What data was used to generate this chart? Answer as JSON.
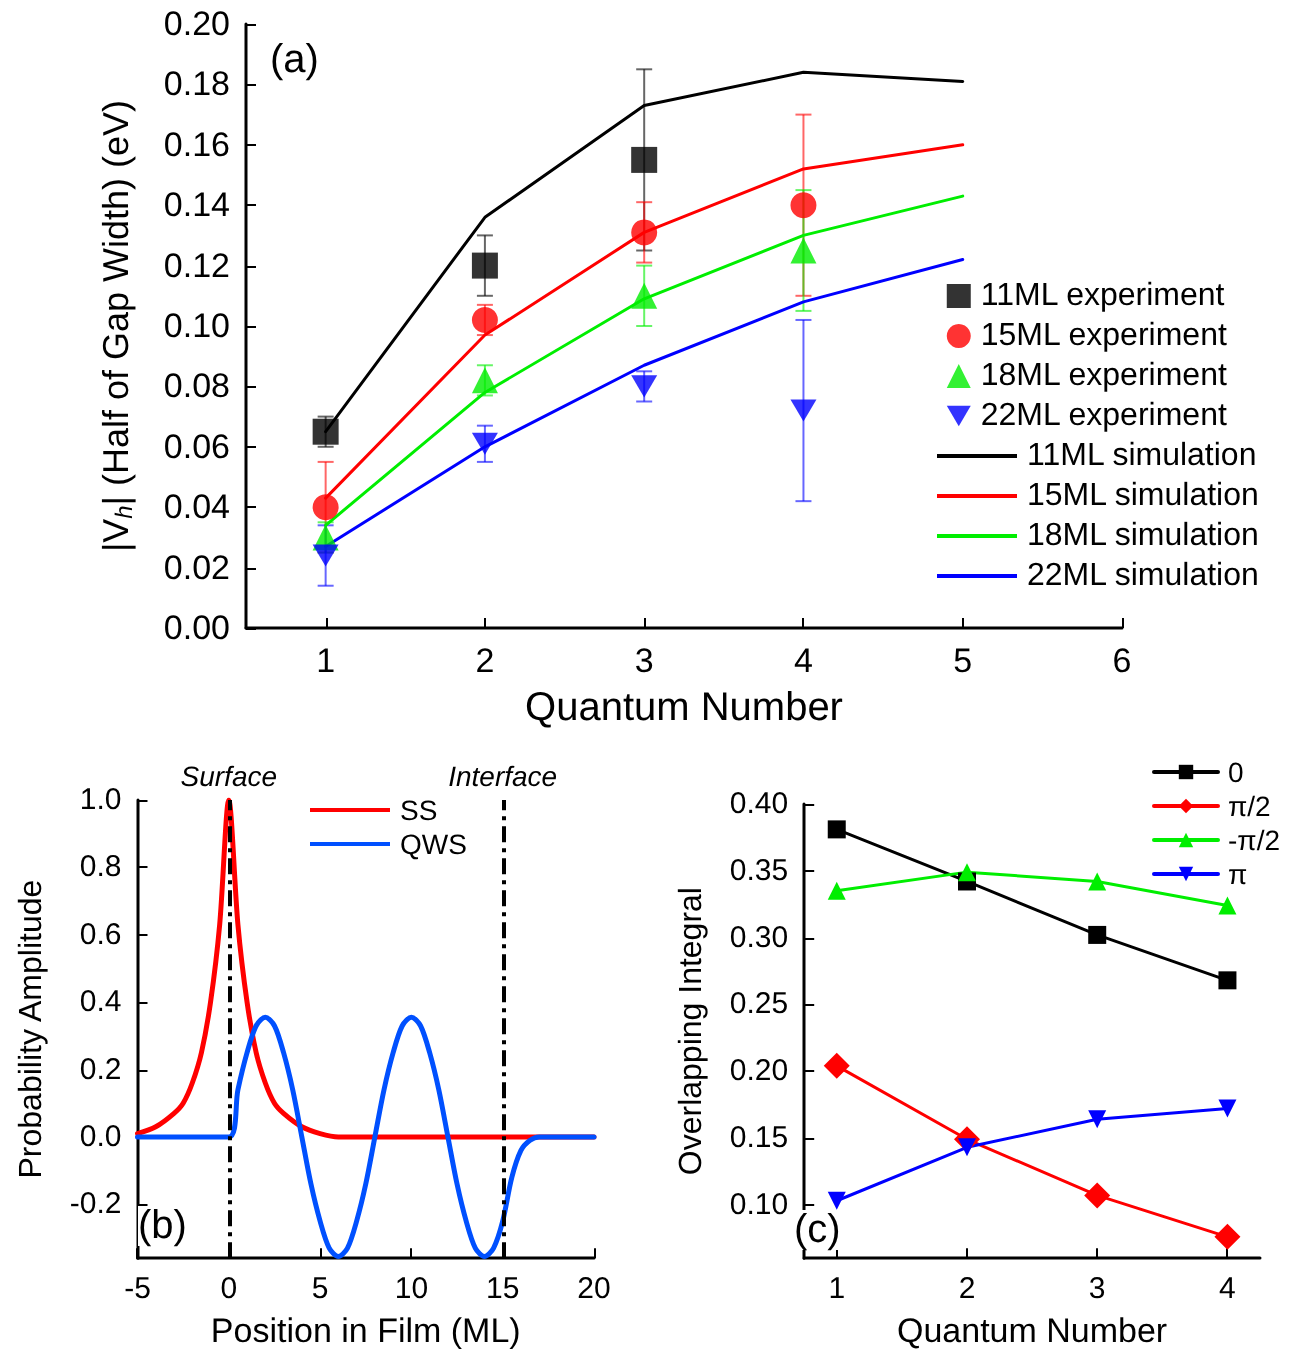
{
  "chart_data": [
    {
      "type": "line",
      "xlabel": "Quantum Number",
      "ylabel": "|V$_{h}$| (Half of Gap Width) (eV)",
      "annotations": [
        "(a)"
      ],
      "legend": "right",
      "xlim": [
        0.5,
        6
      ],
      "xticks": [
        1,
        2,
        3,
        4,
        5,
        6
      ],
      "ylim": [
        0,
        0.2
      ],
      "yticks": [
        {
          "value": 0,
          "label": "0.00"
        },
        {
          "value": 0.02,
          "label": "0.02"
        },
        {
          "value": 0.04,
          "label": "0.04"
        },
        {
          "value": 0.06,
          "label": "0.06"
        },
        {
          "value": 0.08,
          "label": "0.08"
        },
        {
          "value": 0.1,
          "label": "0.10"
        },
        {
          "value": 0.12,
          "label": "0.12"
        },
        {
          "value": 0.14,
          "label": "0.14"
        },
        {
          "value": 0.16,
          "label": "0.16"
        },
        {
          "value": 0.18,
          "label": "0.18"
        },
        {
          "value": 0.2,
          "label": "0.20"
        }
      ],
      "series": [
        {
          "name": "11ML experiment",
          "type": "scatter",
          "marker": "square",
          "color": "#000000",
          "x": [
            1,
            2,
            3
          ],
          "values": [
            0.065,
            0.12,
            0.155
          ],
          "errors": [
            0.005,
            0.01,
            0.03
          ]
        },
        {
          "name": "15ML experiment",
          "type": "scatter",
          "marker": "circle",
          "color": "#ff0000",
          "x": [
            1,
            2,
            3,
            4
          ],
          "values": [
            0.04,
            0.102,
            0.131,
            0.14
          ],
          "errors": [
            0.015,
            0.005,
            0.01,
            0.03
          ]
        },
        {
          "name": "18ML experiment",
          "type": "scatter",
          "marker": "triangle",
          "color": "#00ee00",
          "x": [
            1,
            2,
            3,
            4
          ],
          "values": [
            0.03,
            0.082,
            0.11,
            0.125
          ],
          "errors": [
            0.005,
            0.005,
            0.01,
            0.02
          ]
        },
        {
          "name": "22ML experiment",
          "type": "scatter",
          "marker": "triangle-down",
          "color": "#0000ff",
          "x": [
            1,
            2,
            3,
            4
          ],
          "values": [
            0.024,
            0.061,
            0.08,
            0.072
          ],
          "errors": [
            0.01,
            0.006,
            0.005,
            0.03
          ]
        },
        {
          "name": "11ML simulation",
          "type": "line",
          "marker": "none",
          "color": "#000000",
          "x": [
            1,
            2,
            3,
            4,
            5
          ],
          "values": [
            0.065,
            0.136,
            0.173,
            0.184,
            0.181
          ]
        },
        {
          "name": "15ML simulation",
          "type": "line",
          "marker": "none",
          "color": "#ff0000",
          "x": [
            1,
            2,
            3,
            4,
            5
          ],
          "values": [
            0.043,
            0.097,
            0.131,
            0.152,
            0.16
          ]
        },
        {
          "name": "18ML simulation",
          "type": "line",
          "marker": "none",
          "color": "#00ee00",
          "x": [
            1,
            2,
            3,
            4,
            5
          ],
          "values": [
            0.034,
            0.078,
            0.109,
            0.13,
            0.143
          ]
        },
        {
          "name": "22ML simulation",
          "type": "line",
          "marker": "none",
          "color": "#0000ff",
          "x": [
            1,
            2,
            3,
            4,
            5
          ],
          "values": [
            0.027,
            0.06,
            0.087,
            0.108,
            0.122
          ]
        }
      ]
    },
    {
      "type": "line",
      "xlabel": "Position in Film (ML)",
      "ylabel": "Probability Amplitude",
      "annotations": [
        "(b)"
      ],
      "legend": "top",
      "marker": "none",
      "xlim": [
        -5,
        20
      ],
      "xticks": [
        -5,
        0,
        5,
        10,
        15,
        20
      ],
      "ylim": [
        -0.36,
        1.0
      ],
      "yticks": [
        {
          "value": -0.2,
          "label": "-0.2"
        },
        {
          "value": 0,
          "label": "0.0"
        },
        {
          "value": 0.2,
          "label": "0.2"
        },
        {
          "value": 0.4,
          "label": "0.4"
        },
        {
          "value": 0.6,
          "label": "0.6"
        },
        {
          "value": 0.8,
          "label": "0.8"
        },
        {
          "value": 1.0,
          "label": "1.0"
        }
      ],
      "ref_lines": [
        {
          "axis": "x",
          "value": 0,
          "label": "Surface",
          "color": "#000000",
          "line_style": "dashed"
        },
        {
          "axis": "x",
          "value": 15,
          "label": "Interface",
          "color": "#000000",
          "line_style": "dashed"
        }
      ],
      "series": [
        {
          "name": "SS",
          "color": "#ff0000",
          "x": [
            -5,
            -4,
            -3,
            -2.5,
            -2,
            -1.5,
            -1,
            -0.5,
            0,
            0.5,
            1,
            1.5,
            2,
            2.5,
            3,
            4,
            5,
            6,
            8,
            20
          ],
          "values": [
            0.01,
            0.03,
            0.07,
            0.1,
            0.16,
            0.25,
            0.4,
            0.63,
            1.0,
            0.63,
            0.4,
            0.25,
            0.16,
            0.1,
            0.07,
            0.03,
            0.01,
            0,
            0,
            0
          ]
        },
        {
          "name": "QWS",
          "color": "#0050ff",
          "x": [
            -5,
            0,
            0.5,
            1,
            1.5,
            2,
            2.5,
            3,
            3.5,
            4,
            4.5,
            5,
            5.5,
            6,
            6.5,
            7,
            7.5,
            8,
            8.5,
            9,
            9.5,
            10,
            10.5,
            11,
            11.5,
            12,
            12.5,
            13,
            13.5,
            14,
            14.5,
            15,
            15.5,
            16,
            16.5,
            17,
            20
          ],
          "values": [
            0,
            0,
            0.14,
            0.25,
            0.33,
            0.355,
            0.33,
            0.25,
            0.14,
            0,
            -0.14,
            -0.25,
            -0.33,
            -0.355,
            -0.33,
            -0.25,
            -0.14,
            0,
            0.14,
            0.25,
            0.33,
            0.355,
            0.33,
            0.25,
            0.14,
            0,
            -0.14,
            -0.25,
            -0.33,
            -0.355,
            -0.33,
            -0.25,
            -0.12,
            -0.04,
            -0.01,
            0,
            0
          ]
        }
      ]
    },
    {
      "type": "line",
      "xlabel": "Quantum Number",
      "ylabel": "Overlapping Integral",
      "annotations": [
        "(c)"
      ],
      "legend": "top right",
      "xlim": [
        0.75,
        4.25
      ],
      "xticks": [
        1,
        2,
        3,
        4
      ],
      "ylim": [
        0.06,
        0.4
      ],
      "yticks": [
        {
          "value": 0.1,
          "label": "0.10"
        },
        {
          "value": 0.15,
          "label": "0.15"
        },
        {
          "value": 0.2,
          "label": "0.20"
        },
        {
          "value": 0.25,
          "label": "0.25"
        },
        {
          "value": 0.3,
          "label": "0.30"
        },
        {
          "value": 0.35,
          "label": "0.35"
        },
        {
          "value": 0.4,
          "label": "0.40"
        }
      ],
      "series": [
        {
          "name": "0",
          "marker": "square",
          "color": "#000000",
          "x": [
            1,
            2,
            3,
            4
          ],
          "values": [
            0.381,
            0.342,
            0.302,
            0.268
          ]
        },
        {
          "name": "π/2",
          "marker": "diamond",
          "color": "#ff0000",
          "x": [
            1,
            2,
            3,
            4
          ],
          "values": [
            0.204,
            0.149,
            0.107,
            0.076
          ]
        },
        {
          "name": "-π/2",
          "marker": "triangle",
          "color": "#00ee00",
          "x": [
            1,
            2,
            3,
            4
          ],
          "values": [
            0.335,
            0.349,
            0.342,
            0.324
          ]
        },
        {
          "name": "π",
          "marker": "triangle-down",
          "color": "#0000ff",
          "x": [
            1,
            2,
            3,
            4
          ],
          "values": [
            0.103,
            0.143,
            0.164,
            0.172
          ]
        }
      ]
    }
  ]
}
